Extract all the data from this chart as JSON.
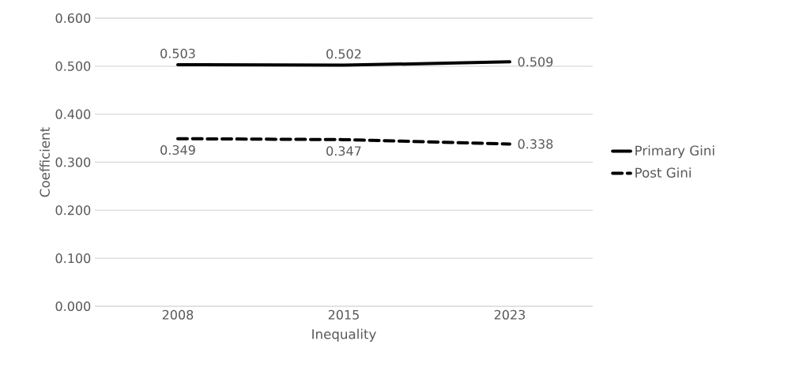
{
  "chart_data": {
    "type": "line",
    "xlabel": "Inequality",
    "ylabel": "Coefficient",
    "categories": [
      "2008",
      "2015",
      "2023"
    ],
    "series": [
      {
        "name": "Primary Gini",
        "color": "#000000",
        "line_style": "solid",
        "values": [
          0.503,
          0.502,
          0.509
        ],
        "value_labels": [
          "0.503",
          "0.502",
          "0.509"
        ]
      },
      {
        "name": "Post Gini",
        "color": "#000000",
        "line_style": "dashed",
        "values": [
          0.349,
          0.347,
          0.338
        ],
        "value_labels": [
          "0.349",
          "0.347",
          "0.338"
        ]
      }
    ],
    "ylim": [
      0,
      0.6
    ],
    "yticks": [
      {
        "value": 0,
        "label": "0.000"
      },
      {
        "value": 0.1,
        "label": "0.100"
      },
      {
        "value": 0.2,
        "label": "0.200"
      },
      {
        "value": 0.3,
        "label": "0.300"
      },
      {
        "value": 0.4,
        "label": "0.400"
      },
      {
        "value": 0.5,
        "label": "0.500"
      },
      {
        "value": 0.6,
        "label": "0.600"
      }
    ],
    "grid": "y",
    "legend": "right"
  }
}
